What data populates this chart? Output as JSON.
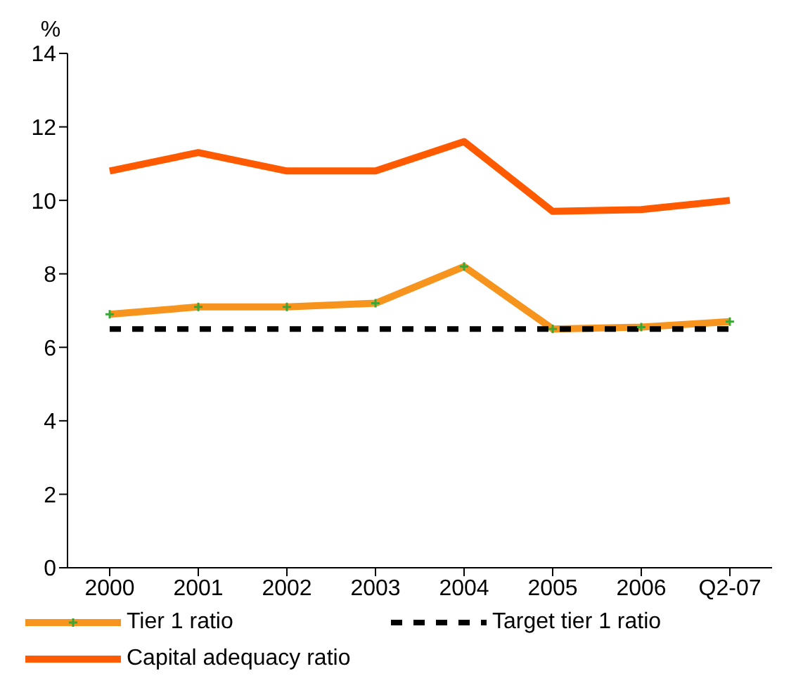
{
  "chart_data": {
    "type": "line",
    "ylabel": "%",
    "categories": [
      "2000",
      "2001",
      "2002",
      "2003",
      "2004",
      "2005",
      "2006",
      "Q2-07"
    ],
    "ylim": [
      0,
      14
    ],
    "yticks": [
      0,
      2,
      4,
      6,
      8,
      10,
      12,
      14
    ],
    "grid": false,
    "legend": "bottom",
    "series": [
      {
        "name": "Tier 1 ratio",
        "color": "#f7941d",
        "marker": "cross",
        "values": [
          6.9,
          7.1,
          7.1,
          7.2,
          8.2,
          6.5,
          6.55,
          6.7
        ]
      },
      {
        "name": "Target tier 1 ratio",
        "color": "#000000",
        "line_style": "dashed",
        "marker": "none",
        "values": [
          6.5,
          6.5,
          6.5,
          6.5,
          6.5,
          6.5,
          6.5,
          6.5
        ]
      },
      {
        "name": "Capital adequacy ratio",
        "color": "#ff5a00",
        "marker": "none",
        "values": [
          10.8,
          11.3,
          10.8,
          10.8,
          11.6,
          9.7,
          9.75,
          10.0
        ]
      }
    ]
  }
}
